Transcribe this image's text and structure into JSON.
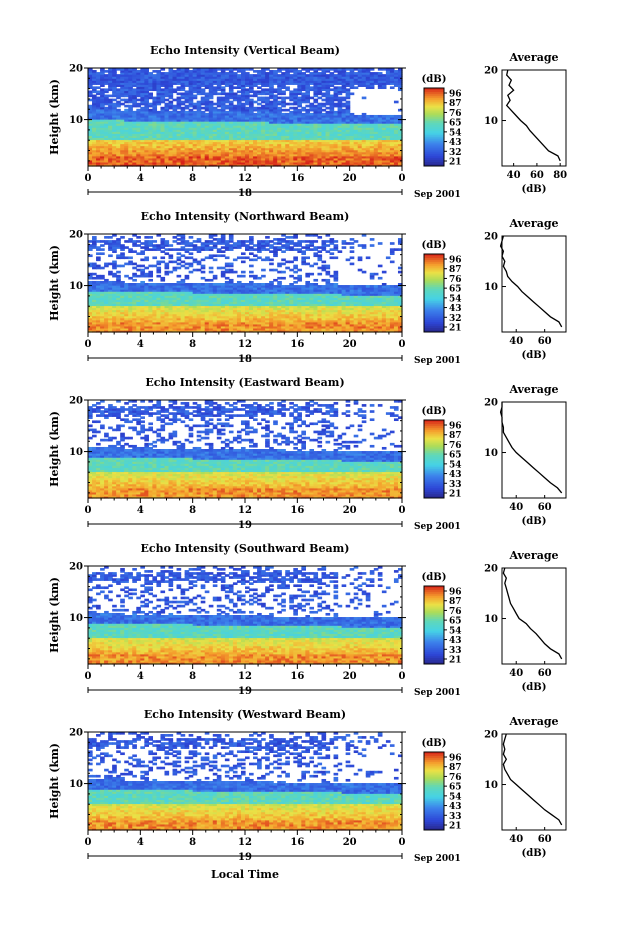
{
  "figure": {
    "bottom_xlabel": "Local Time",
    "colorbar_unit": "(dB)",
    "colorbar_ticks": [
      "96",
      "87",
      "76",
      "65",
      "54",
      "43",
      "32",
      "21"
    ],
    "colorbar_ticks_alt": [
      "96",
      "87",
      "76",
      "65",
      "54",
      "43",
      "33",
      "21"
    ],
    "average_title": "Average",
    "average_xlabel": "(dB)",
    "height_label": "Height (km)",
    "month_label": "Sep 2001",
    "colors": {
      "low": "#2b2bb5",
      "mid": "#44d7c4",
      "high": "#f2a52c",
      "top": "#e22b1c"
    }
  },
  "chart_data": [
    {
      "type": "heatmap",
      "title": "Echo Intensity (Vertical Beam)",
      "ylabel": "Height (km)",
      "x_ticks": [
        "0",
        "4",
        "8",
        "12",
        "16",
        "20",
        "0"
      ],
      "y_ticks": [
        "20",
        "10"
      ],
      "date_label": "18",
      "xlim": [
        0,
        24
      ],
      "ylim": [
        1,
        20
      ],
      "colorbar_ticks": [
        "96",
        "87",
        "76",
        "65",
        "54",
        "43",
        "32",
        "21"
      ],
      "average": {
        "title": "Average",
        "xlabel": "(dB)",
        "x_ticks": [
          "40",
          "60",
          "80"
        ],
        "xlim": [
          30,
          85
        ],
        "heights": [
          2,
          3,
          4,
          5,
          6,
          7,
          8,
          9,
          10,
          11,
          12,
          13,
          14,
          15,
          16,
          17,
          18,
          19,
          20
        ],
        "values": [
          80,
          78,
          70,
          66,
          62,
          58,
          54,
          51,
          46,
          42,
          38,
          34,
          37,
          35,
          40,
          36,
          38,
          34,
          35
        ]
      }
    },
    {
      "type": "heatmap",
      "title": "Echo Intensity (Northward Beam)",
      "ylabel": "Height (km)",
      "x_ticks": [
        "0",
        "4",
        "8",
        "12",
        "16",
        "20",
        "0"
      ],
      "y_ticks": [
        "20",
        "10"
      ],
      "date_label": "18",
      "xlim": [
        0,
        24
      ],
      "ylim": [
        1,
        20
      ],
      "colorbar_ticks": [
        "96",
        "87",
        "76",
        "65",
        "54",
        "43",
        "32",
        "21"
      ],
      "average": {
        "title": "Average",
        "xlabel": "(dB)",
        "x_ticks": [
          "40",
          "60"
        ],
        "xlim": [
          30,
          75
        ],
        "heights": [
          2,
          3,
          4,
          5,
          6,
          7,
          8,
          9,
          10,
          11,
          12,
          13,
          14,
          15,
          16,
          17,
          18,
          19,
          20
        ],
        "values": [
          72,
          70,
          64,
          60,
          56,
          52,
          48,
          44,
          41,
          37,
          34,
          33,
          31,
          32,
          30,
          31,
          29,
          30,
          31
        ]
      }
    },
    {
      "type": "heatmap",
      "title": "Echo Intensity (Eastward Beam)",
      "ylabel": "Height (km)",
      "x_ticks": [
        "0",
        "4",
        "8",
        "12",
        "16",
        "20",
        "0"
      ],
      "y_ticks": [
        "20",
        "10"
      ],
      "date_label": "19",
      "xlim": [
        0,
        24
      ],
      "ylim": [
        1,
        20
      ],
      "colorbar_ticks": [
        "96",
        "87",
        "76",
        "65",
        "54",
        "43",
        "33",
        "21"
      ],
      "average": {
        "title": "Average",
        "xlabel": "(dB)",
        "x_ticks": [
          "40",
          "60"
        ],
        "xlim": [
          30,
          75
        ],
        "heights": [
          2,
          3,
          4,
          5,
          6,
          7,
          8,
          9,
          10,
          11,
          12,
          13,
          14,
          15,
          16,
          17,
          18,
          19,
          20
        ],
        "values": [
          72,
          69,
          64,
          60,
          56,
          52,
          48,
          44,
          40,
          37,
          35,
          33,
          31,
          31,
          30,
          30,
          29,
          30,
          30
        ]
      }
    },
    {
      "type": "heatmap",
      "title": "Echo Intensity (Southward Beam)",
      "ylabel": "Height (km)",
      "x_ticks": [
        "0",
        "4",
        "8",
        "12",
        "16",
        "20",
        "0"
      ],
      "y_ticks": [
        "20",
        "10"
      ],
      "date_label": "19",
      "xlim": [
        0,
        24
      ],
      "ylim": [
        1,
        20
      ],
      "colorbar_ticks": [
        "96",
        "87",
        "76",
        "65",
        "54",
        "43",
        "33",
        "21"
      ],
      "average": {
        "title": "Average",
        "xlabel": "(dB)",
        "x_ticks": [
          "40",
          "60"
        ],
        "xlim": [
          30,
          75
        ],
        "heights": [
          2,
          3,
          4,
          5,
          6,
          7,
          8,
          9,
          10,
          11,
          12,
          13,
          14,
          15,
          16,
          17,
          18,
          19,
          20
        ],
        "values": [
          72,
          70,
          64,
          60,
          57,
          54,
          50,
          47,
          42,
          40,
          38,
          36,
          35,
          34,
          33,
          32,
          33,
          31,
          32
        ]
      }
    },
    {
      "type": "heatmap",
      "title": "Echo Intensity (Westward Beam)",
      "ylabel": "Height (km)",
      "x_ticks": [
        "0",
        "4",
        "8",
        "12",
        "16",
        "20",
        "0"
      ],
      "y_ticks": [
        "20",
        "10"
      ],
      "date_label": "19",
      "xlim": [
        0,
        24
      ],
      "ylim": [
        1,
        20
      ],
      "colorbar_ticks": [
        "96",
        "87",
        "76",
        "65",
        "54",
        "43",
        "33",
        "21"
      ],
      "average": {
        "title": "Average",
        "xlabel": "(dB)",
        "x_ticks": [
          "40",
          "60"
        ],
        "xlim": [
          30,
          75
        ],
        "heights": [
          2,
          3,
          4,
          5,
          6,
          7,
          8,
          9,
          10,
          11,
          12,
          13,
          14,
          15,
          16,
          17,
          18,
          19,
          20
        ],
        "values": [
          72,
          70,
          65,
          60,
          56,
          52,
          48,
          44,
          40,
          36,
          34,
          32,
          31,
          33,
          31,
          32,
          31,
          32,
          33
        ]
      }
    }
  ]
}
